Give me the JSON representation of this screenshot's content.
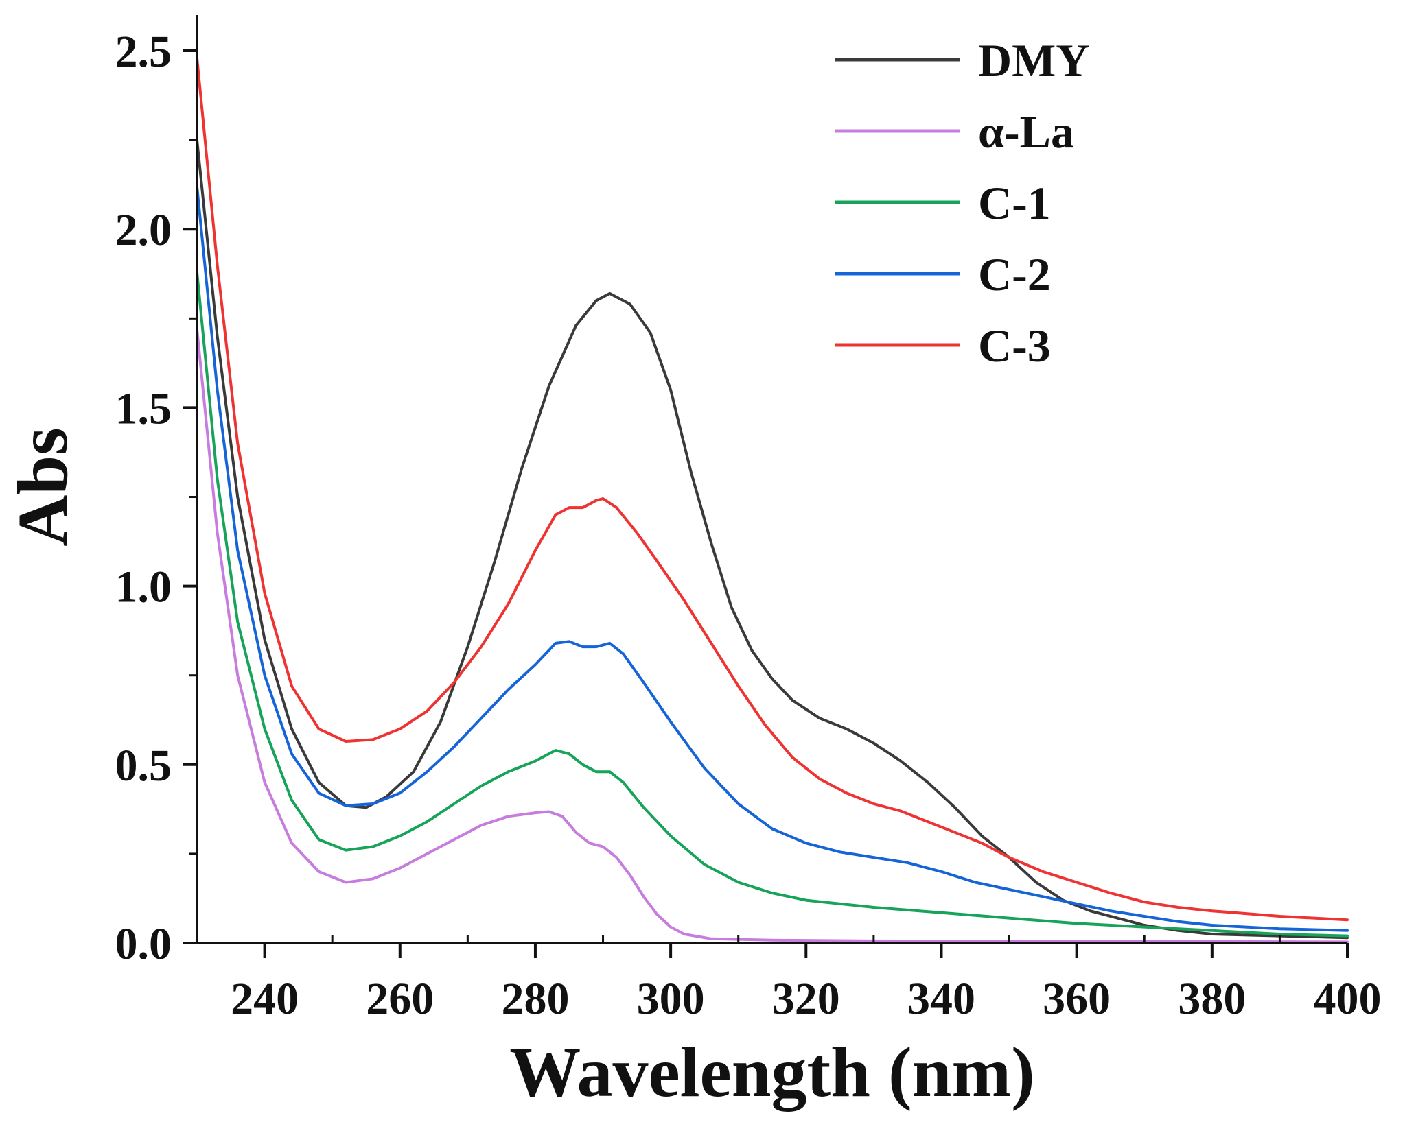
{
  "chart_data": {
    "type": "line",
    "title": "",
    "xlabel": "Wavelength (nm)",
    "ylabel": "Abs",
    "xlim": [
      230,
      400
    ],
    "ylim": [
      0,
      2.6
    ],
    "xticks": [
      240,
      260,
      280,
      300,
      320,
      340,
      360,
      380,
      400
    ],
    "xtick_labels": [
      "240",
      "260",
      "280",
      "300",
      "320",
      "340",
      "360",
      "380",
      "400"
    ],
    "yticks": [
      0,
      0.5,
      1.0,
      1.5,
      2.0,
      2.5
    ],
    "ytick_labels": [
      "0.0",
      "0.5",
      "1.0",
      "1.5",
      "2.0",
      "2.5"
    ],
    "grid": false,
    "legend_position": "top-right",
    "series": [
      {
        "name": "DMY",
        "color": "#3a3a3a",
        "points": [
          [
            230,
            2.25
          ],
          [
            233,
            1.7
          ],
          [
            236,
            1.25
          ],
          [
            240,
            0.85
          ],
          [
            244,
            0.6
          ],
          [
            248,
            0.45
          ],
          [
            252,
            0.385
          ],
          [
            255,
            0.38
          ],
          [
            258,
            0.41
          ],
          [
            262,
            0.48
          ],
          [
            266,
            0.62
          ],
          [
            270,
            0.83
          ],
          [
            274,
            1.07
          ],
          [
            278,
            1.33
          ],
          [
            282,
            1.56
          ],
          [
            286,
            1.73
          ],
          [
            289,
            1.8
          ],
          [
            291,
            1.82
          ],
          [
            294,
            1.79
          ],
          [
            297,
            1.71
          ],
          [
            300,
            1.55
          ],
          [
            303,
            1.32
          ],
          [
            306,
            1.12
          ],
          [
            309,
            0.94
          ],
          [
            312,
            0.82
          ],
          [
            315,
            0.74
          ],
          [
            318,
            0.68
          ],
          [
            322,
            0.63
          ],
          [
            326,
            0.6
          ],
          [
            330,
            0.56
          ],
          [
            334,
            0.51
          ],
          [
            338,
            0.45
          ],
          [
            342,
            0.38
          ],
          [
            346,
            0.3
          ],
          [
            350,
            0.24
          ],
          [
            354,
            0.17
          ],
          [
            358,
            0.12
          ],
          [
            362,
            0.09
          ],
          [
            366,
            0.07
          ],
          [
            370,
            0.05
          ],
          [
            375,
            0.035
          ],
          [
            380,
            0.025
          ],
          [
            390,
            0.02
          ],
          [
            400,
            0.015
          ]
        ]
      },
      {
        "name": "α-La",
        "color": "#c77ddd",
        "points": [
          [
            230,
            1.72
          ],
          [
            233,
            1.15
          ],
          [
            236,
            0.75
          ],
          [
            240,
            0.45
          ],
          [
            244,
            0.28
          ],
          [
            248,
            0.2
          ],
          [
            252,
            0.17
          ],
          [
            256,
            0.18
          ],
          [
            260,
            0.21
          ],
          [
            264,
            0.25
          ],
          [
            268,
            0.29
          ],
          [
            272,
            0.33
          ],
          [
            276,
            0.355
          ],
          [
            280,
            0.365
          ],
          [
            282,
            0.368
          ],
          [
            284,
            0.355
          ],
          [
            286,
            0.31
          ],
          [
            288,
            0.28
          ],
          [
            290,
            0.27
          ],
          [
            292,
            0.24
          ],
          [
            294,
            0.19
          ],
          [
            296,
            0.13
          ],
          [
            298,
            0.08
          ],
          [
            300,
            0.045
          ],
          [
            302,
            0.025
          ],
          [
            306,
            0.012
          ],
          [
            315,
            0.008
          ],
          [
            330,
            0.006
          ],
          [
            350,
            0.005
          ],
          [
            380,
            0.004
          ],
          [
            400,
            0.003
          ]
        ]
      },
      {
        "name": "C-1",
        "color": "#17a35a",
        "points": [
          [
            230,
            1.88
          ],
          [
            233,
            1.3
          ],
          [
            236,
            0.9
          ],
          [
            240,
            0.6
          ],
          [
            244,
            0.4
          ],
          [
            248,
            0.29
          ],
          [
            252,
            0.26
          ],
          [
            256,
            0.27
          ],
          [
            260,
            0.3
          ],
          [
            264,
            0.34
          ],
          [
            268,
            0.39
          ],
          [
            272,
            0.44
          ],
          [
            276,
            0.48
          ],
          [
            280,
            0.51
          ],
          [
            283,
            0.54
          ],
          [
            285,
            0.53
          ],
          [
            287,
            0.5
          ],
          [
            289,
            0.48
          ],
          [
            291,
            0.48
          ],
          [
            293,
            0.45
          ],
          [
            296,
            0.38
          ],
          [
            300,
            0.3
          ],
          [
            305,
            0.22
          ],
          [
            310,
            0.17
          ],
          [
            315,
            0.14
          ],
          [
            320,
            0.12
          ],
          [
            330,
            0.1
          ],
          [
            340,
            0.085
          ],
          [
            350,
            0.07
          ],
          [
            360,
            0.055
          ],
          [
            370,
            0.045
          ],
          [
            380,
            0.035
          ],
          [
            390,
            0.025
          ],
          [
            400,
            0.02
          ]
        ]
      },
      {
        "name": "C-2",
        "color": "#1565d8",
        "points": [
          [
            230,
            2.12
          ],
          [
            233,
            1.55
          ],
          [
            236,
            1.1
          ],
          [
            240,
            0.75
          ],
          [
            244,
            0.53
          ],
          [
            248,
            0.42
          ],
          [
            252,
            0.385
          ],
          [
            256,
            0.39
          ],
          [
            260,
            0.42
          ],
          [
            264,
            0.48
          ],
          [
            268,
            0.55
          ],
          [
            272,
            0.63
          ],
          [
            276,
            0.71
          ],
          [
            280,
            0.78
          ],
          [
            283,
            0.84
          ],
          [
            285,
            0.845
          ],
          [
            287,
            0.83
          ],
          [
            289,
            0.83
          ],
          [
            291,
            0.84
          ],
          [
            293,
            0.81
          ],
          [
            296,
            0.73
          ],
          [
            300,
            0.62
          ],
          [
            305,
            0.49
          ],
          [
            310,
            0.39
          ],
          [
            315,
            0.32
          ],
          [
            320,
            0.28
          ],
          [
            325,
            0.255
          ],
          [
            330,
            0.24
          ],
          [
            335,
            0.225
          ],
          [
            340,
            0.2
          ],
          [
            345,
            0.17
          ],
          [
            350,
            0.15
          ],
          [
            355,
            0.13
          ],
          [
            360,
            0.11
          ],
          [
            365,
            0.09
          ],
          [
            370,
            0.075
          ],
          [
            375,
            0.06
          ],
          [
            380,
            0.05
          ],
          [
            390,
            0.04
          ],
          [
            400,
            0.035
          ]
        ]
      },
      {
        "name": "C-3",
        "color": "#ee3333",
        "points": [
          [
            230,
            2.48
          ],
          [
            233,
            1.9
          ],
          [
            236,
            1.4
          ],
          [
            240,
            0.98
          ],
          [
            244,
            0.72
          ],
          [
            248,
            0.6
          ],
          [
            252,
            0.565
          ],
          [
            256,
            0.57
          ],
          [
            260,
            0.6
          ],
          [
            264,
            0.65
          ],
          [
            268,
            0.73
          ],
          [
            272,
            0.83
          ],
          [
            276,
            0.95
          ],
          [
            280,
            1.1
          ],
          [
            283,
            1.2
          ],
          [
            285,
            1.22
          ],
          [
            287,
            1.22
          ],
          [
            289,
            1.24
          ],
          [
            290,
            1.245
          ],
          [
            292,
            1.22
          ],
          [
            295,
            1.15
          ],
          [
            298,
            1.07
          ],
          [
            302,
            0.96
          ],
          [
            306,
            0.84
          ],
          [
            310,
            0.72
          ],
          [
            314,
            0.61
          ],
          [
            318,
            0.52
          ],
          [
            322,
            0.46
          ],
          [
            326,
            0.42
          ],
          [
            330,
            0.39
          ],
          [
            334,
            0.37
          ],
          [
            338,
            0.34
          ],
          [
            342,
            0.31
          ],
          [
            346,
            0.28
          ],
          [
            350,
            0.24
          ],
          [
            355,
            0.2
          ],
          [
            360,
            0.17
          ],
          [
            365,
            0.14
          ],
          [
            370,
            0.115
          ],
          [
            375,
            0.1
          ],
          [
            380,
            0.09
          ],
          [
            390,
            0.075
          ],
          [
            400,
            0.065
          ]
        ]
      }
    ]
  }
}
